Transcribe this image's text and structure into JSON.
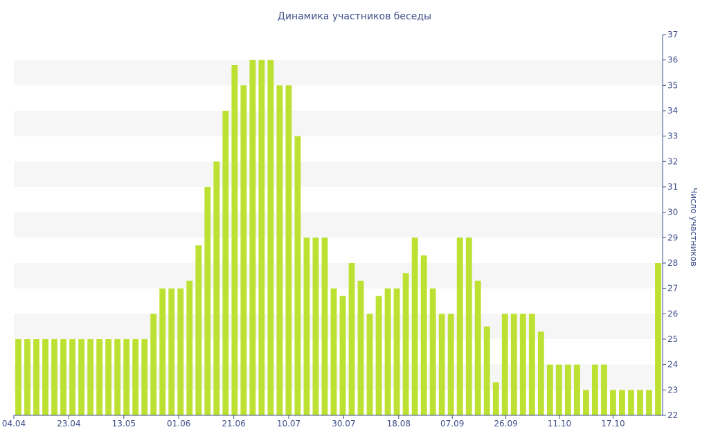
{
  "chart_data": {
    "type": "bar",
    "title": "Динамика участников беседы",
    "xlabel": "",
    "ylabel": "Число участников",
    "ylim": [
      22,
      37
    ],
    "y_ticks": [
      "22",
      "23",
      "24",
      "25",
      "26",
      "27",
      "28",
      "29",
      "30",
      "31",
      "32",
      "33",
      "34",
      "35",
      "36",
      "37"
    ],
    "x_tick_labels": [
      "04.04",
      "23.04",
      "13.05",
      "01.06",
      "21.06",
      "10.07",
      "30.07",
      "18.08",
      "07.09",
      "26.09",
      "11.10",
      "17.10"
    ],
    "y_axis_position": "right",
    "grid": "horizontal bands",
    "colors": {
      "bar": "#bde132",
      "band": "#f6f6f6",
      "axis": "#3e4f8a",
      "text": "#3e4f8a"
    },
    "values": [
      25,
      25,
      25,
      25,
      25,
      25,
      25,
      25,
      25,
      25,
      25,
      25,
      25,
      25,
      25,
      26,
      27,
      27,
      27,
      27.3,
      28.7,
      31,
      32,
      34,
      35.8,
      35,
      36,
      36,
      36,
      35,
      35,
      33,
      29,
      29,
      29,
      27,
      26.7,
      28,
      27.3,
      26,
      26.7,
      27,
      27,
      27.6,
      29,
      28.3,
      27,
      26,
      26,
      29,
      29,
      27.3,
      25.5,
      23.3,
      26,
      26,
      26,
      26,
      25.3,
      24,
      24,
      24,
      24,
      23,
      24,
      24,
      23,
      23,
      23,
      23,
      23,
      28
    ]
  }
}
